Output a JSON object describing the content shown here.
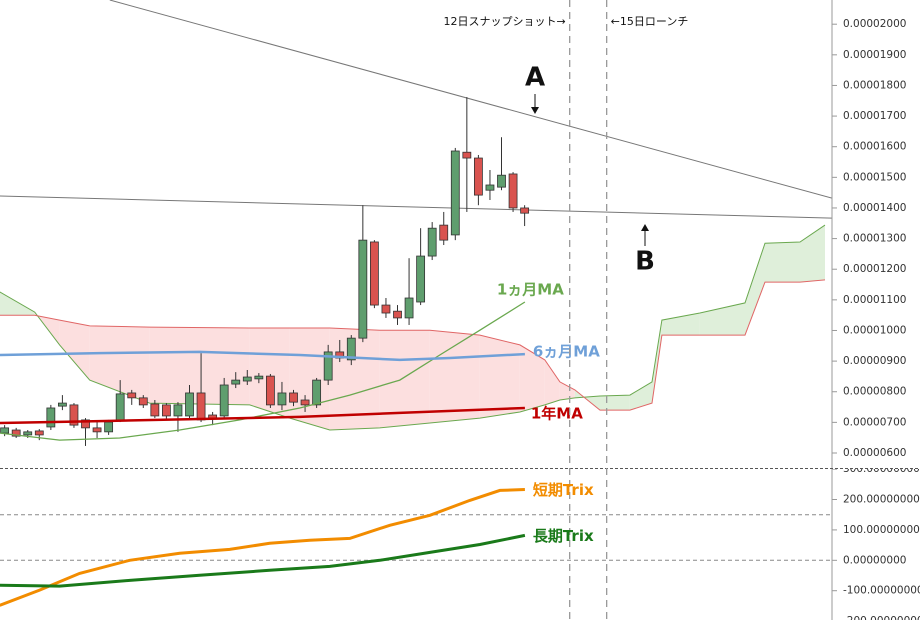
{
  "chart_data": [
    {
      "type": "candlestick",
      "xlim": [
        -0.4,
        71.6
      ],
      "ylim": [
        5.51e-06,
        2.079e-05
      ],
      "yticks": [
        {
          "value": 2e-05,
          "label": "0.00002000"
        },
        {
          "value": 1.9e-05,
          "label": "0.00001900"
        },
        {
          "value": 1.8e-05,
          "label": "0.00001800"
        },
        {
          "value": 1.7e-05,
          "label": "0.00001700"
        },
        {
          "value": 1.6e-05,
          "label": "0.00001600"
        },
        {
          "value": 1.5e-05,
          "label": "0.00001500"
        },
        {
          "value": 1.4e-05,
          "label": "0.00001400"
        },
        {
          "value": 1.3e-05,
          "label": "0.00001300"
        },
        {
          "value": 1.2e-05,
          "label": "0.00001200"
        },
        {
          "value": 1.1e-05,
          "label": "0.00001100"
        },
        {
          "value": 1e-05,
          "label": "0.00001000"
        },
        {
          "value": 9e-06,
          "label": "0.00000900"
        },
        {
          "value": 8e-06,
          "label": "0.00000800"
        },
        {
          "value": 7e-06,
          "label": "0.00000700"
        },
        {
          "value": 6e-06,
          "label": "0.00000600"
        }
      ],
      "up_color": "#5f9e6e",
      "down_color": "#d9534f",
      "candles": {
        "open": [
          6.65e-06,
          6.75e-06,
          6.59e-06,
          6.72e-06,
          6.85e-06,
          7.53e-06,
          7.57e-06,
          7.08e-06,
          6.82e-06,
          6.69e-06,
          7.08e-06,
          7.96e-06,
          7.8e-06,
          7.6e-06,
          7.57e-06,
          7.21e-06,
          7.21e-06,
          7.96e-06,
          7.24e-06,
          7.21e-06,
          8.25e-06,
          8.35e-06,
          8.42e-06,
          8.51e-06,
          7.57e-06,
          7.96e-06,
          7.73e-06,
          7.57e-06,
          8.38e-06,
          9.3e-06,
          9.04e-06,
          9.75e-06,
          1.289e-05,
          1.083e-05,
          1.063e-05,
          1.041e-05,
          1.093e-05,
          1.243e-05,
          1.344e-05,
          1.312e-05,
          1.582e-05,
          1.563e-05,
          1.458e-05,
          1.468e-05,
          1.511e-05,
          1.4e-05
        ],
        "high": [
          6.91e-06,
          6.82e-06,
          6.75e-06,
          6.78e-06,
          7.57e-06,
          7.89e-06,
          7.63e-06,
          7.14e-06,
          7.01e-06,
          7.08e-06,
          8.38e-06,
          8.06e-06,
          7.89e-06,
          7.73e-06,
          7.63e-06,
          7.66e-06,
          8.22e-06,
          9.26e-06,
          7.34e-06,
          8.45e-06,
          8.64e-06,
          8.71e-06,
          8.61e-06,
          8.58e-06,
          8.32e-06,
          8.06e-06,
          7.89e-06,
          8.45e-06,
          9.53e-06,
          9.69e-06,
          9.85e-06,
          1.409e-05,
          1.295e-05,
          1.106e-05,
          1.083e-05,
          1.236e-05,
          1.334e-05,
          1.354e-05,
          1.387e-05,
          1.596e-05,
          1.762e-05,
          1.573e-05,
          1.524e-05,
          1.631e-05,
          1.517e-05,
          1.409e-05
        ],
        "low": [
          6.55e-06,
          6.49e-06,
          6.49e-06,
          6.42e-06,
          6.75e-06,
          7.4e-06,
          6.82e-06,
          6.23e-06,
          6.49e-06,
          6.59e-06,
          7.01e-06,
          7.57e-06,
          7.47e-06,
          7.14e-06,
          7.08e-06,
          6.69e-06,
          7.08e-06,
          7.01e-06,
          6.91e-06,
          7.14e-06,
          8.12e-06,
          8.22e-06,
          8.28e-06,
          7.47e-06,
          7.4e-06,
          7.53e-06,
          7.34e-06,
          7.47e-06,
          8.22e-06,
          8.97e-06,
          8.87e-06,
          9.62e-06,
          1.073e-05,
          1.041e-05,
          1.018e-05,
          1.018e-05,
          1.083e-05,
          1.23e-05,
          1.279e-05,
          1.295e-05,
          1.387e-05,
          1.409e-05,
          1.426e-05,
          1.458e-05,
          1.387e-05,
          1.341e-05
        ],
        "close": [
          6.82e-06,
          6.55e-06,
          6.69e-06,
          6.59e-06,
          7.47e-06,
          7.63e-06,
          6.91e-06,
          6.82e-06,
          6.69e-06,
          7.01e-06,
          7.93e-06,
          7.8e-06,
          7.57e-06,
          7.21e-06,
          7.21e-06,
          7.57e-06,
          7.96e-06,
          7.08e-06,
          7.14e-06,
          8.22e-06,
          8.38e-06,
          8.48e-06,
          8.51e-06,
          7.57e-06,
          7.96e-06,
          7.66e-06,
          7.57e-06,
          8.38e-06,
          9.3e-06,
          9.1e-06,
          9.75e-06,
          1.295e-05,
          1.083e-05,
          1.057e-05,
          1.041e-05,
          1.106e-05,
          1.243e-05,
          1.334e-05,
          1.295e-05,
          1.586e-05,
          1.563e-05,
          1.442e-05,
          1.475e-05,
          1.507e-05,
          1.4e-05,
          1.383e-05
        ]
      },
      "cloud": {
        "x": [
          -0.43,
          2.6,
          4.76,
          7.36,
          12.55,
          21.21,
          24.68,
          28.14,
          32.47,
          36.8,
          41.13,
          44.59,
          46.75,
          48.05,
          49.35,
          51.52,
          54.11,
          56.02,
          56.88,
          60.17,
          64.07,
          65.8,
          68.83,
          70.99
        ],
        "span1": [
          1.126e-05,
          1.06e-05,
          9.53e-06,
          8.38e-06,
          7.63e-06,
          7.57e-06,
          7.14e-06,
          6.75e-06,
          6.82e-06,
          6.98e-06,
          7.14e-06,
          7.34e-06,
          7.57e-06,
          7.73e-06,
          7.8e-06,
          7.86e-06,
          7.89e-06,
          8.32e-06,
          1.034e-05,
          1.057e-05,
          1.09e-05,
          1.285e-05,
          1.289e-05,
          1.344e-05
        ],
        "span2": [
          1.05e-05,
          1.05e-05,
          1.034e-05,
          1.015e-05,
          1.011e-05,
          1.008e-05,
          1.008e-05,
          1.008e-05,
          1.001e-05,
          1.001e-05,
          9.85e-06,
          9.53e-06,
          9.04e-06,
          8.32e-06,
          8.06e-06,
          7.4e-06,
          7.4e-06,
          7.63e-06,
          9.85e-06,
          9.85e-06,
          9.85e-06,
          1.158e-05,
          1.158e-05,
          1.165e-05
        ],
        "span1_color": "#6aa84f",
        "span2_color": "#e06666",
        "up_fill": "#d9ecd3",
        "down_fill": "#fbd9d9"
      },
      "lines": [
        {
          "x": [
            9.1,
            71.6
          ],
          "values": [
            2.079e-05,
            1.432e-05
          ],
          "color": "#777777"
        },
        {
          "x": [
            -0.4,
            71.6
          ],
          "values": [
            1.439e-05,
            1.367e-05
          ],
          "color": "#777777"
        }
      ],
      "series": [
        {
          "name": "1ヵ月MA",
          "color": "#6aa84f",
          "x": [
            -0.43,
            4.76,
            9.96,
            15.15,
            20.35,
            25.54,
            29.87,
            34.2,
            37.66,
            41.13,
            45.02
          ],
          "values": [
            6.65e-06,
            6.42e-06,
            6.49e-06,
            6.75e-06,
            7.08e-06,
            7.47e-06,
            7.89e-06,
            8.38e-06,
            9.2e-06,
            1.001e-05,
            1.093e-05
          ]
        },
        {
          "name": "6ヵ月MA",
          "color": "#6fa0d8",
          "x": [
            -0.43,
            8.23,
            16.88,
            25.54,
            34.2,
            38.53,
            45.02
          ],
          "values": [
            9.2e-06,
            9.26e-06,
            9.3e-06,
            9.2e-06,
            9.04e-06,
            9.1e-06,
            9.23e-06
          ]
        },
        {
          "name": "1年MA",
          "color": "#c00000",
          "x": [
            -0.43,
            8.23,
            16.88,
            25.54,
            34.2,
            45.02
          ],
          "values": [
            6.98e-06,
            7.04e-06,
            7.11e-06,
            7.18e-06,
            7.31e-06,
            7.47e-06
          ]
        }
      ],
      "events": [
        {
          "x": 48.9,
          "label": "12日スナップショット→"
        },
        {
          "x": 52.1,
          "label": "←15日ローンチ"
        }
      ],
      "annotations": [
        "A",
        "B"
      ]
    },
    {
      "type": "line",
      "xlim": [
        -0.4,
        71.6
      ],
      "ylim": [
        -198,
        302
      ],
      "yticks": [
        {
          "value": 300,
          "label": "300.00000000"
        },
        {
          "value": 200,
          "label": "200.00000000"
        },
        {
          "value": 100,
          "label": "100.00000000"
        },
        {
          "value": 0,
          "label": "0.00000000"
        },
        {
          "value": -100,
          "label": "-100.00000000"
        },
        {
          "value": -200,
          "label": "-200.00000000"
        }
      ],
      "hlines": [
        150,
        0
      ],
      "series": [
        {
          "name": "短期Trix",
          "color": "#f28c00",
          "x": [
            -0.43,
            3.03,
            6.49,
            10.82,
            15.15,
            19.48,
            22.94,
            26.41,
            29.87,
            33.33,
            36.8,
            40.26,
            42.86,
            45.02
          ],
          "values": [
            -148,
            -98,
            -43,
            0,
            23,
            36,
            56,
            66,
            72,
            115,
            148,
            197,
            230,
            233
          ]
        },
        {
          "name": "長期Trix",
          "color": "#1a7a1a",
          "x": [
            -0.43,
            4.76,
            10.82,
            16.88,
            22.94,
            28.14,
            32.47,
            36.8,
            41.13,
            45.02
          ],
          "values": [
            -82,
            -85,
            -66,
            -49,
            -33,
            -20,
            0,
            26,
            52,
            82
          ]
        }
      ]
    }
  ]
}
